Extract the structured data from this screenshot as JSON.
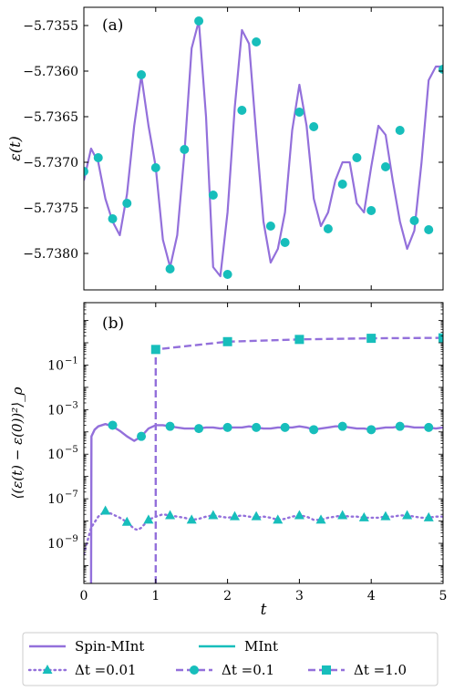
{
  "chart_data": [
    {
      "type": "line",
      "panel_label": "(a)",
      "ylabel": "ε(t)",
      "xlabel": "",
      "xlim": [
        0,
        5
      ],
      "ylim": [
        -5.7384,
        -5.7353
      ],
      "yticks": [
        -5.7355,
        -5.736,
        -5.7365,
        -5.737,
        -5.7375,
        -5.738
      ],
      "ytick_labels": [
        "−5.7355",
        "−5.7360",
        "−5.7365",
        "−5.7370",
        "−5.7375",
        "−5.7380"
      ],
      "xticks": [
        0,
        1,
        2,
        3,
        4,
        5
      ],
      "series": [
        {
          "name": "Spin-MInt",
          "x": [
            0,
            0.1,
            0.2,
            0.3,
            0.4,
            0.5,
            0.6,
            0.7,
            0.8,
            0.9,
            1.0,
            1.1,
            1.2,
            1.3,
            1.4,
            1.5,
            1.6,
            1.7,
            1.8,
            1.9,
            2.0,
            2.1,
            2.2,
            2.3,
            2.4,
            2.5,
            2.6,
            2.7,
            2.8,
            2.9,
            3.0,
            3.1,
            3.2,
            3.3,
            3.4,
            3.5,
            3.6,
            3.7,
            3.8,
            3.9,
            4.0,
            4.1,
            4.2,
            4.3,
            4.4,
            4.5,
            4.6,
            4.7,
            4.8,
            4.9,
            5.0
          ],
          "y": [
            -5.7372,
            -5.73685,
            -5.737,
            -5.7374,
            -5.73765,
            -5.7378,
            -5.73735,
            -5.7366,
            -5.73605,
            -5.7366,
            -5.73705,
            -5.73785,
            -5.73815,
            -5.7378,
            -5.7369,
            -5.73575,
            -5.73545,
            -5.7365,
            -5.73815,
            -5.73825,
            -5.73755,
            -5.7364,
            -5.73555,
            -5.7357,
            -5.7367,
            -5.73765,
            -5.7381,
            -5.73795,
            -5.73755,
            -5.73665,
            -5.73615,
            -5.7366,
            -5.7374,
            -5.7377,
            -5.73755,
            -5.7372,
            -5.737,
            -5.737,
            -5.73745,
            -5.73755,
            -5.73705,
            -5.7366,
            -5.7367,
            -5.7372,
            -5.73765,
            -5.73795,
            -5.73775,
            -5.737,
            -5.7361,
            -5.73595,
            -5.73595
          ]
        },
        {
          "name": "MInt",
          "x": [
            0,
            0.2,
            0.4,
            0.6,
            0.8,
            1.0,
            1.2,
            1.4,
            1.6,
            1.8,
            2.0,
            2.2,
            2.4,
            2.6,
            2.8,
            3.0,
            3.2,
            3.4,
            3.6,
            3.8,
            4.0,
            4.2,
            4.4,
            4.6,
            4.8,
            5.0
          ],
          "y": [
            -5.7371,
            -5.73695,
            -5.73762,
            -5.73745,
            -5.73604,
            -5.73706,
            -5.73817,
            -5.73686,
            -5.73545,
            -5.73736,
            -5.73823,
            -5.73643,
            -5.73568,
            -5.7377,
            -5.73788,
            -5.73645,
            -5.73661,
            -5.73773,
            -5.73724,
            -5.73695,
            -5.73753,
            -5.73705,
            -5.73665,
            -5.73764,
            -5.73774,
            -5.73598
          ]
        }
      ]
    },
    {
      "type": "line",
      "panel_label": "(b)",
      "ylabel": "⟨(ε(t) − ε(0))²⟩_ρ",
      "xlabel": "t",
      "xlim": [
        0,
        5
      ],
      "yscale": "log",
      "ylim_log10": [
        -10.8,
        1.8
      ],
      "yticks_log10": [
        -1,
        -3,
        -5,
        -7,
        -9
      ],
      "ytick_labels": [
        "10",
        "10",
        "10",
        "10",
        "10"
      ],
      "ytick_exponents": [
        "−1",
        "−3",
        "−5",
        "−7",
        "−9"
      ],
      "xticks": [
        0,
        1,
        2,
        3,
        4,
        5
      ],
      "xtick_labels": [
        "0",
        "1",
        "2",
        "3",
        "4",
        "5"
      ],
      "series": [
        {
          "name": "Δt = 0.01",
          "style": "dotted",
          "marker": "triangle",
          "x": [
            0,
            0.05,
            0.1,
            0.2,
            0.3,
            0.4,
            0.5,
            0.6,
            0.7,
            0.75,
            0.8,
            0.9,
            1.0,
            1.1,
            1.2,
            1.3,
            1.4,
            1.5,
            1.6,
            1.7,
            1.8,
            1.9,
            2.0,
            2.1,
            2.2,
            2.3,
            2.4,
            2.5,
            2.6,
            2.7,
            2.8,
            2.9,
            3.0,
            3.1,
            3.2,
            3.3,
            3.4,
            3.5,
            3.6,
            3.7,
            3.8,
            3.9,
            4.0,
            4.1,
            4.2,
            4.3,
            4.4,
            4.5,
            4.6,
            4.7,
            4.8,
            4.9,
            5.0
          ],
          "y_log10": [
            -9.5,
            -8.9,
            -8.3,
            -7.8,
            -7.55,
            -7.7,
            -7.85,
            -8.05,
            -8.35,
            -8.4,
            -8.3,
            -7.95,
            -7.8,
            -7.7,
            -7.75,
            -7.8,
            -7.85,
            -7.95,
            -7.9,
            -7.8,
            -7.75,
            -7.8,
            -7.85,
            -7.8,
            -7.75,
            -7.8,
            -7.85,
            -7.8,
            -7.85,
            -7.95,
            -7.9,
            -7.8,
            -7.75,
            -7.8,
            -7.95,
            -7.95,
            -7.85,
            -7.8,
            -7.75,
            -7.8,
            -7.8,
            -7.85,
            -7.85,
            -7.85,
            -7.8,
            -7.8,
            -7.75,
            -7.75,
            -7.8,
            -7.85,
            -7.85,
            -7.8,
            -7.8
          ],
          "markers_x": [
            0.3,
            0.6,
            0.9,
            1.2,
            1.5,
            1.8,
            2.1,
            2.4,
            2.7,
            3.0,
            3.3,
            3.6,
            3.9,
            4.2,
            4.5,
            4.8
          ],
          "markers_y_log10": [
            -7.55,
            -8.05,
            -7.95,
            -7.75,
            -7.95,
            -7.75,
            -7.8,
            -7.8,
            -7.95,
            -7.75,
            -7.95,
            -7.75,
            -7.85,
            -7.8,
            -7.75,
            -7.85
          ]
        },
        {
          "name": "Δt = 0.1",
          "style": "solid",
          "marker": "circle",
          "x": [
            0.1,
            0.105,
            0.15,
            0.2,
            0.3,
            0.4,
            0.5,
            0.6,
            0.7,
            0.8,
            0.9,
            1.0,
            1.1,
            1.2,
            1.3,
            1.4,
            1.5,
            1.6,
            1.7,
            1.8,
            1.9,
            2.0,
            2.1,
            2.2,
            2.3,
            2.4,
            2.5,
            2.6,
            2.7,
            2.8,
            2.9,
            3.0,
            3.1,
            3.2,
            3.3,
            3.4,
            3.5,
            3.6,
            3.7,
            3.8,
            3.9,
            4.0,
            4.1,
            4.2,
            4.3,
            4.4,
            4.5,
            4.6,
            4.7,
            4.8,
            4.9,
            5.0
          ],
          "y_log10": [
            -10.8,
            -4.2,
            -3.9,
            -3.75,
            -3.65,
            -3.75,
            -3.95,
            -4.2,
            -4.4,
            -4.2,
            -3.85,
            -3.7,
            -3.7,
            -3.75,
            -3.8,
            -3.85,
            -3.85,
            -3.85,
            -3.8,
            -3.8,
            -3.85,
            -3.8,
            -3.8,
            -3.8,
            -3.75,
            -3.8,
            -3.85,
            -3.85,
            -3.8,
            -3.8,
            -3.8,
            -3.75,
            -3.8,
            -3.9,
            -3.85,
            -3.8,
            -3.75,
            -3.75,
            -3.8,
            -3.85,
            -3.85,
            -3.9,
            -3.85,
            -3.8,
            -3.8,
            -3.75,
            -3.75,
            -3.8,
            -3.8,
            -3.8,
            -3.85,
            -3.8
          ],
          "markers_x": [
            0.4,
            0.8,
            1.2,
            1.6,
            2.0,
            2.4,
            2.8,
            3.2,
            3.6,
            4.0,
            4.4,
            4.8
          ],
          "markers_y_log10": [
            -3.7,
            -4.2,
            -3.75,
            -3.85,
            -3.8,
            -3.8,
            -3.8,
            -3.9,
            -3.75,
            -3.9,
            -3.75,
            -3.8
          ]
        },
        {
          "name": "Δt = 1.0",
          "style": "dashed",
          "marker": "square",
          "x": [
            1.0,
            1.0,
            2.0,
            3.0,
            4.0,
            5.0
          ],
          "y_log10": [
            -10.8,
            -0.3,
            0.05,
            0.15,
            0.2,
            0.22
          ],
          "markers_x": [
            1.0,
            2.0,
            3.0,
            4.0,
            5.0
          ],
          "markers_y_log10": [
            -0.3,
            0.05,
            0.15,
            0.2,
            0.22
          ]
        }
      ]
    }
  ],
  "legend": {
    "placement": "bottom",
    "entries": [
      {
        "label": "Spin-MInt",
        "kind": "line-solid-purple"
      },
      {
        "label": "MInt",
        "kind": "line-solid-teal"
      },
      {
        "label": "Δt =0.01",
        "kind": "dotted-triangle"
      },
      {
        "label": "Δt =0.1",
        "kind": "dashed-circle"
      },
      {
        "label": "Δt =1.0",
        "kind": "dashed-square"
      }
    ]
  },
  "colors": {
    "purple": "#9370DB",
    "teal": "#17BEBB",
    "axis": "#000000"
  }
}
